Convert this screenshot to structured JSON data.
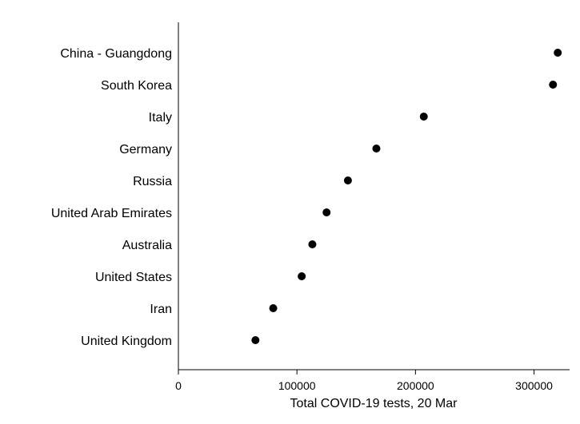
{
  "chart_data": {
    "type": "scatter",
    "title": "",
    "xlabel": "Total COVID-19 tests, 20 Mar",
    "ylabel": "",
    "xlim": [
      0,
      330000
    ],
    "xticks": [
      0,
      100000,
      200000,
      300000
    ],
    "xtick_labels": [
      "0",
      "100000",
      "200000",
      "300000"
    ],
    "grid": false,
    "legend": "none",
    "marker_color": "#000000",
    "points": [
      {
        "category": "China - Guangdong",
        "value": 320000
      },
      {
        "category": "South Korea",
        "value": 316000
      },
      {
        "category": "Italy",
        "value": 207000
      },
      {
        "category": "Germany",
        "value": 167000
      },
      {
        "category": "Russia",
        "value": 143000
      },
      {
        "category": "United Arab Emirates",
        "value": 125000
      },
      {
        "category": "Australia",
        "value": 113000
      },
      {
        "category": "United States",
        "value": 104000
      },
      {
        "category": "Iran",
        "value": 80000
      },
      {
        "category": "United Kingdom",
        "value": 65000
      }
    ]
  }
}
